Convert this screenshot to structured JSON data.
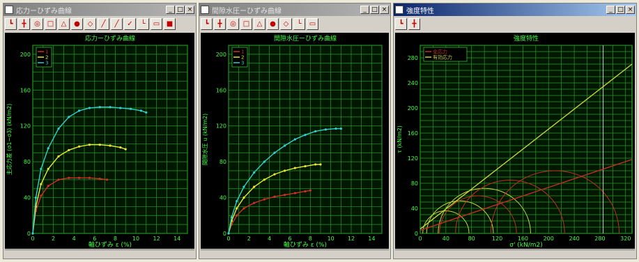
{
  "windows": [
    {
      "title": "応力ーひずみ曲線",
      "active": false,
      "controls": [
        "_",
        "□",
        "×"
      ],
      "tools": [
        "┗",
        "╋",
        "◎",
        "□",
        "△",
        "●",
        "◇",
        "╱",
        "╱",
        "✓",
        "└",
        "▭",
        "■"
      ],
      "chart_data": {
        "type": "line",
        "title": "応力ーひずみ曲線",
        "xlabel": "軸ひずみ ε (%)",
        "ylabel": "主応力差 (σ1−σ3) (kN/m2)",
        "xlim": [
          0,
          15
        ],
        "ylim": [
          0,
          210
        ],
        "xticks": [
          "0",
          "2",
          "4",
          "6",
          "8",
          "10",
          "12",
          "14"
        ],
        "yticks": [
          "0",
          "40",
          "80",
          "120",
          "160",
          "200"
        ],
        "grid": true,
        "legend": "top-left",
        "series": [
          {
            "name": "1",
            "color": "#d03020",
            "x": [
              0,
              0.3,
              0.8,
              1.5,
              2.5,
              3.5,
              4.5,
              5.5,
              6.5,
              7.2
            ],
            "y": [
              0,
              25,
              42,
              53,
              60,
              62,
              62,
              62,
              61,
              60
            ]
          },
          {
            "name": "2",
            "color": "#e8e830",
            "x": [
              0,
              0.3,
              0.8,
              1.5,
              2.5,
              3.5,
              4.5,
              5.5,
              6.5,
              7.5,
              8.5,
              9.0
            ],
            "y": [
              0,
              30,
              55,
              72,
              86,
              93,
              97,
              99,
              99,
              98,
              96,
              94
            ]
          },
          {
            "name": "3",
            "color": "#30d0d0",
            "x": [
              0,
              0.3,
              0.8,
              1.5,
              2.5,
              3.5,
              4.5,
              5.5,
              6.5,
              7.5,
              8.5,
              9.5,
              10.5,
              11.0
            ],
            "y": [
              0,
              40,
              72,
              95,
              117,
              130,
              137,
              140,
              141,
              141,
              140,
              139,
              137,
              135
            ]
          }
        ]
      }
    },
    {
      "title": "間隙水圧ーひずみ曲線",
      "active": false,
      "controls": [
        "_",
        "□",
        "×"
      ],
      "tools": [
        "┗",
        "╋",
        "◎",
        "□",
        "△",
        "●",
        "◇",
        "└",
        "▭"
      ],
      "chart_data": {
        "type": "line",
        "title": "間隙水圧ーひずみ曲線",
        "xlabel": "軸ひずみ ε (%)",
        "ylabel": "間隙水圧 u (kN/m2)",
        "xlim": [
          0,
          15
        ],
        "ylim": [
          0,
          210
        ],
        "xticks": [
          "0",
          "2",
          "4",
          "6",
          "8",
          "10",
          "12",
          "14"
        ],
        "yticks": [
          "0",
          "40",
          "80",
          "120",
          "160",
          "200"
        ],
        "grid": true,
        "legend": "top-left",
        "series": [
          {
            "name": "1",
            "color": "#d03020",
            "x": [
              0,
              0.3,
              0.8,
              1.5,
              2.5,
              3.5,
              4.5,
              5.5,
              6.5,
              7.5,
              8.0
            ],
            "y": [
              0,
              10,
              20,
              28,
              34,
              38,
              41,
              43,
              45,
              47,
              48
            ]
          },
          {
            "name": "2",
            "color": "#e8e830",
            "x": [
              0,
              0.3,
              0.8,
              1.5,
              2.5,
              3.5,
              4.5,
              5.5,
              6.5,
              7.5,
              8.5,
              9.0
            ],
            "y": [
              0,
              14,
              28,
              40,
              52,
              60,
              66,
              70,
              73,
              75,
              77,
              77
            ]
          },
          {
            "name": "3",
            "color": "#30d0d0",
            "x": [
              0,
              0.3,
              0.8,
              1.5,
              2.5,
              3.5,
              4.5,
              5.5,
              6.5,
              7.5,
              8.5,
              9.5,
              10.5,
              11.0
            ],
            "y": [
              0,
              18,
              36,
              52,
              68,
              80,
              90,
              98,
              105,
              110,
              114,
              116,
              117,
              117
            ]
          }
        ]
      }
    },
    {
      "title": "強度特性",
      "active": true,
      "controls": [
        "_",
        "□",
        "×"
      ],
      "tools": [
        "┗",
        "╋"
      ],
      "chart_data": {
        "type": "line",
        "title": "強度特性",
        "xlabel": "σ' (kN/m2)",
        "ylabel": "τ (kN/m2)",
        "xlim": [
          0,
          330
        ],
        "ylim": [
          0,
          300
        ],
        "xticks": [
          "0",
          "40",
          "80",
          "120",
          "160",
          "200",
          "240",
          "280",
          "320"
        ],
        "yticks": [
          "0",
          "40",
          "80",
          "120",
          "160",
          "200",
          "240",
          "280"
        ],
        "grid": true,
        "legend": "top-left",
        "series": [
          {
            "name": "全応力",
            "color": "#c03020",
            "x": [
              0,
              330
            ],
            "y": [
              5,
              118
            ]
          },
          {
            "name": "有効応力",
            "color": "#c8d040",
            "x": [
              0,
              330
            ],
            "y": [
              7,
              270
            ]
          }
        ],
        "circles": [
          {
            "color": "#c8d040",
            "center": 40,
            "radius": 36
          },
          {
            "color": "#c8d040",
            "center": 62,
            "radius": 52
          },
          {
            "color": "#c8d040",
            "center": 100,
            "radius": 72
          },
          {
            "color": "#c03020",
            "center": 90,
            "radius": 60
          },
          {
            "color": "#c03020",
            "center": 140,
            "radius": 85
          },
          {
            "color": "#c03020",
            "center": 210,
            "radius": 100
          }
        ],
        "marker_x": 285
      }
    }
  ]
}
